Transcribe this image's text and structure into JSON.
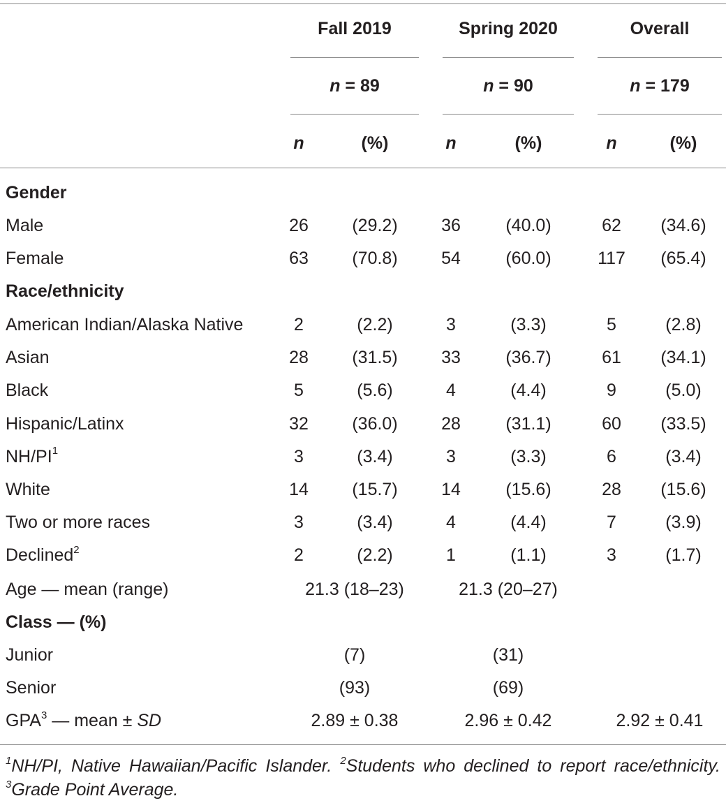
{
  "header": {
    "groups": [
      {
        "name": "Fall 2019",
        "n_label": "n",
        "n_value": " = 89"
      },
      {
        "name": "Spring 2020",
        "n_label": "n",
        "n_value": " = 90"
      },
      {
        "name": "Overall",
        "n_label": "n",
        "n_value": " = 179"
      }
    ],
    "col_n": "n",
    "col_pct": "(%)"
  },
  "sections": {
    "gender": "Gender",
    "race": "Race/ethnicity",
    "class": "Class — (%)"
  },
  "gender_rows": [
    {
      "label": "Male",
      "values": [
        "26",
        "(29.2)",
        "36",
        "(40.0)",
        "62",
        "(34.6)"
      ]
    },
    {
      "label": "Female",
      "values": [
        "63",
        "(70.8)",
        "54",
        "(60.0)",
        "117",
        "(65.4)"
      ]
    }
  ],
  "race_rows": [
    {
      "label": "American Indian/Alaska Native",
      "sup": "",
      "values": [
        "2",
        "(2.2)",
        "3",
        "(3.3)",
        "5",
        "(2.8)"
      ]
    },
    {
      "label": "Asian",
      "sup": "",
      "values": [
        "28",
        "(31.5)",
        "33",
        "(36.7)",
        "61",
        "(34.1)"
      ]
    },
    {
      "label": "Black",
      "sup": "",
      "values": [
        "5",
        "(5.6)",
        "4",
        "(4.4)",
        "9",
        "(5.0)"
      ]
    },
    {
      "label": "Hispanic/Latinx",
      "sup": "",
      "values": [
        "32",
        "(36.0)",
        "28",
        "(31.1)",
        "60",
        "(33.5)"
      ]
    },
    {
      "label": "NH/PI",
      "sup": "1",
      "values": [
        "3",
        "(3.4)",
        "3",
        "(3.3)",
        "6",
        "(3.4)"
      ]
    },
    {
      "label": "White",
      "sup": "",
      "values": [
        "14",
        "(15.7)",
        "14",
        "(15.6)",
        "28",
        "(15.6)"
      ]
    },
    {
      "label": "Two or more races",
      "sup": "",
      "values": [
        "3",
        "(3.4)",
        "4",
        "(4.4)",
        "7",
        "(3.9)"
      ]
    },
    {
      "label": "Declined",
      "sup": "2",
      "values": [
        "2",
        "(2.2)",
        "1",
        "(1.1)",
        "3",
        "(1.7)"
      ]
    }
  ],
  "age_row": {
    "label": "Age — mean (range)",
    "values": [
      "21.3 (18–23)",
      "21.3 (20–27)"
    ]
  },
  "class_rows": [
    {
      "label": "Junior",
      "values": [
        "(7)",
        "(31)"
      ]
    },
    {
      "label": "Senior",
      "values": [
        "(93)",
        "(69)"
      ]
    }
  ],
  "gpa_row": {
    "label": "GPA",
    "sup": "3",
    "suffix": " — mean ± ",
    "sd": "SD",
    "values": [
      "2.89 ± 0.38",
      "2.96 ± 0.42",
      "2.92 ± 0.41"
    ]
  },
  "footnote": {
    "parts": [
      {
        "sup": "1",
        "text": "NH/PI, Native Hawaiian/Pacific Islander. "
      },
      {
        "sup": "2",
        "text": "Students who declined to report race/ethnicity. "
      },
      {
        "sup": "3",
        "text": "Grade Point Average."
      }
    ]
  }
}
